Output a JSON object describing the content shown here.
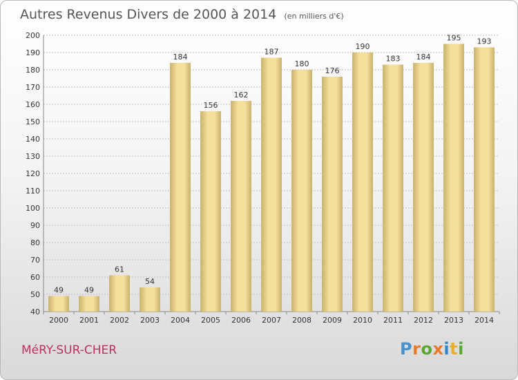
{
  "header": {
    "title": "Autres Revenus Divers de 2000 à 2014",
    "subtitle": "(en milliers d'€)"
  },
  "footer": {
    "commune": "MéRY-SUR-CHER",
    "logo_text": "Proxiti"
  },
  "colors": {
    "bar_light": "#f5df9c",
    "bar_dark": "#c9b26a",
    "grid": "#bfbfbf",
    "commune_text": "#c0305c",
    "logo_letters": [
      "#4a90c8",
      "#e87a2a",
      "#5aa832",
      "#e87a2a",
      "#2a8ac8",
      "#e8b02a",
      "#5aa832"
    ]
  },
  "chart_data": {
    "type": "bar",
    "title": "Autres Revenus Divers de 2000 à 2014",
    "subtitle": "(en milliers d'€)",
    "categories": [
      "2000",
      "2001",
      "2002",
      "2003",
      "2004",
      "2005",
      "2006",
      "2007",
      "2008",
      "2009",
      "2010",
      "2011",
      "2012",
      "2013",
      "2014"
    ],
    "values": [
      49,
      49,
      61,
      54,
      184,
      156,
      162,
      187,
      180,
      176,
      190,
      183,
      184,
      195,
      193
    ],
    "ylim": [
      40,
      200
    ],
    "yticks": [
      40,
      50,
      60,
      70,
      80,
      90,
      100,
      110,
      120,
      130,
      140,
      150,
      160,
      170,
      180,
      190,
      200
    ],
    "grid": true,
    "xlabel": "",
    "ylabel": ""
  }
}
